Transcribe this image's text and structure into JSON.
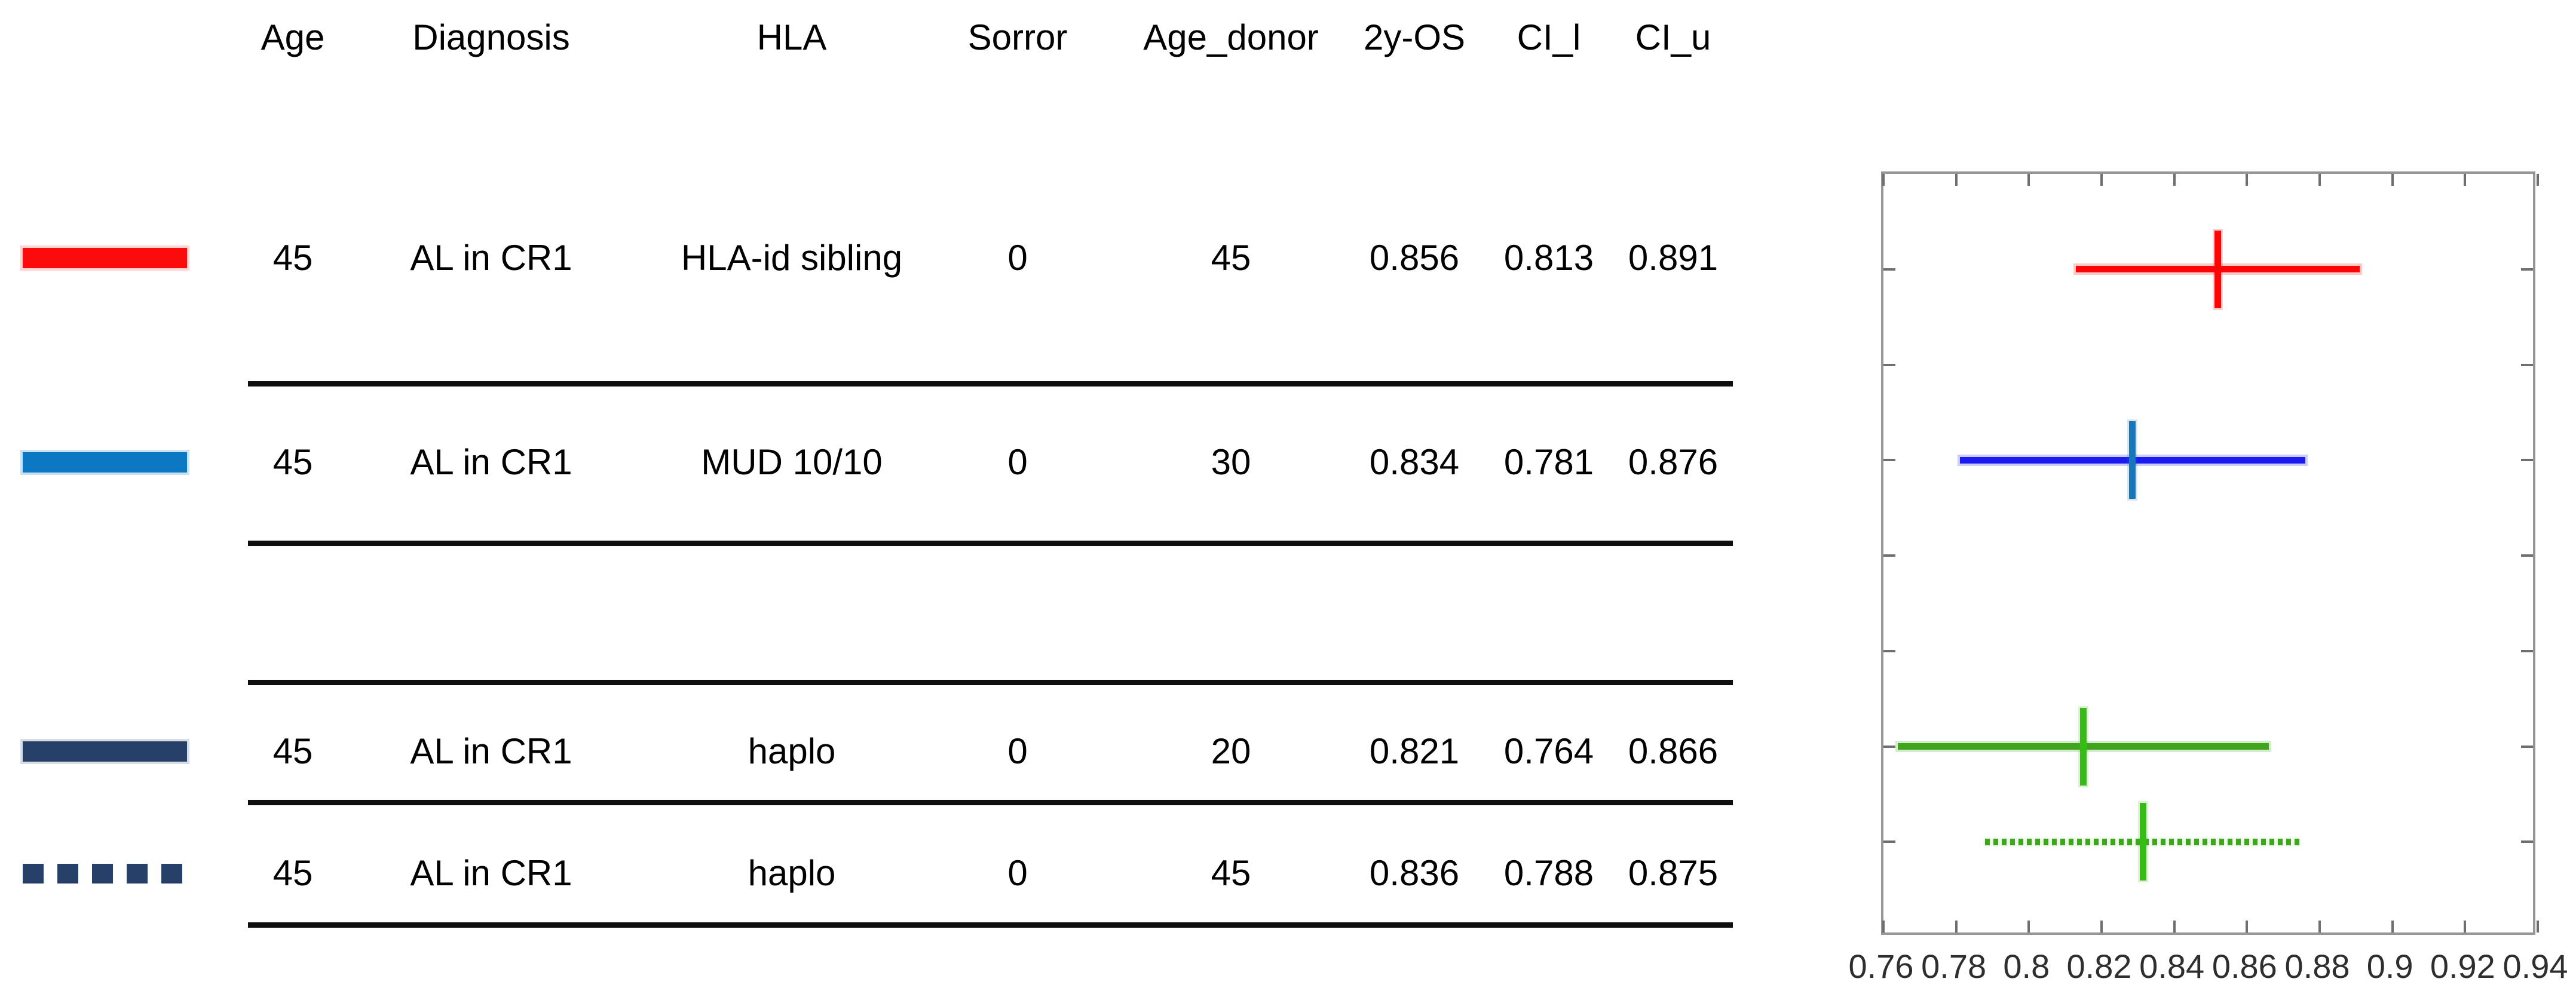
{
  "table": {
    "headers": [
      "Age",
      "Diagnosis",
      "HLA",
      "Sorror",
      "Age_donor",
      "2y-OS",
      "CI_l",
      "CI_u"
    ],
    "rows": [
      {
        "legend": "red-solid-line",
        "age": "45",
        "diagnosis": "AL in CR1",
        "hla": "HLA-id sibling",
        "sorror": "0",
        "age_donor": "45",
        "os": "0.856",
        "ci_l": "0.813",
        "ci_u": "0.891"
      },
      {
        "legend": "blue-solid-line",
        "age": "45",
        "diagnosis": "AL in CR1",
        "hla": "MUD 10/10",
        "sorror": "0",
        "age_donor": "30",
        "os": "0.834",
        "ci_l": "0.781",
        "ci_u": "0.876"
      },
      {
        "legend": "navy-solid-line",
        "age": "45",
        "diagnosis": "AL in CR1",
        "hla": "haplo",
        "sorror": "0",
        "age_donor": "20",
        "os": "0.821",
        "ci_l": "0.764",
        "ci_u": "0.866"
      },
      {
        "legend": "navy-dotted-line",
        "age": "45",
        "diagnosis": "AL in CR1",
        "hla": "haplo",
        "sorror": "0",
        "age_donor": "45",
        "os": "0.836",
        "ci_l": "0.788",
        "ci_u": "0.875"
      }
    ]
  },
  "colors": {
    "legend_red": "#fb0b0b",
    "legend_blue": "#0c78c3",
    "legend_navy": "#27406a",
    "plot_red": "#f90707",
    "plot_blue": "#1b1bf0",
    "plot_blue_marker": "#1478ba",
    "plot_green": "#3ea51d",
    "plot_green_marker": "#36bd13",
    "axis_gray": "#969696",
    "tick_gray": "#6e6e6e",
    "tick_label_gray": "#2e2e2e"
  },
  "chart_data": {
    "type": "scatter",
    "subtype": "horizontal-errorbar-forest-plot",
    "title": "",
    "xlabel": "",
    "ylabel": "",
    "xlim": [
      0.76,
      0.94
    ],
    "x_ticks": [
      0.76,
      0.78,
      0.8,
      0.82,
      0.84,
      0.86,
      0.88,
      0.9,
      0.92,
      0.94
    ],
    "x_tick_labels": [
      "0.76",
      "0.78",
      "0.8",
      "0.82",
      "0.84",
      "0.86",
      "0.88",
      "0.9",
      "0.92",
      "0.94"
    ],
    "grid": false,
    "legend_position": "none (legend is the table line-style column)",
    "y_rows": 8,
    "y_tick_rows": [
      1,
      2,
      3,
      4,
      5,
      6,
      7
    ],
    "marker": "vertical bar at CI midpoint, half row-step tall",
    "series": [
      {
        "name": "HLA-id sibling",
        "y": 1,
        "estimate": 0.856,
        "ci": [
          0.813,
          0.891
        ],
        "line_color": "#f90707",
        "marker_color": "#f90707",
        "style": "solid"
      },
      {
        "name": "MUD 10/10",
        "y": 3,
        "estimate": 0.834,
        "ci": [
          0.781,
          0.876
        ],
        "line_color": "#1b1bf0",
        "marker_color": "#1478ba",
        "style": "solid"
      },
      {
        "name": "haplo (donor 20)",
        "y": 6,
        "estimate": 0.821,
        "ci": [
          0.764,
          0.866
        ],
        "line_color": "#3ea51d",
        "marker_color": "#36bd13",
        "style": "solid"
      },
      {
        "name": "haplo (donor 45)",
        "y": 7,
        "estimate": 0.836,
        "ci": [
          0.788,
          0.875
        ],
        "line_color": "#3ea51d",
        "marker_color": "#36bd13",
        "style": "dotted"
      }
    ]
  }
}
